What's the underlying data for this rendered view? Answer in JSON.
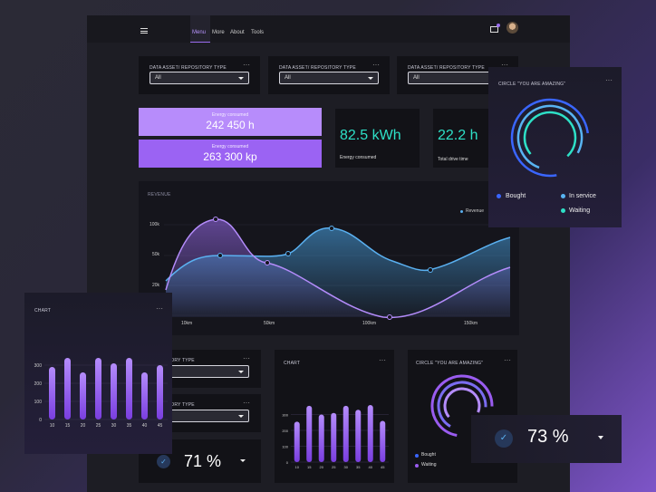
{
  "nav": {
    "items": [
      "Menu",
      "More",
      "About",
      "Tools"
    ],
    "active": 0
  },
  "filters": [
    {
      "label": "DATA ASSET/ REPOSITORY TYPE",
      "value": "All"
    },
    {
      "label": "DATA ASSET/ REPOSITORY TYPE",
      "value": "All"
    },
    {
      "label": "DATA ASSET/ REPOSITORY TYPE",
      "value": "All"
    }
  ],
  "kpis": {
    "energy1": {
      "label": "Energy consumed",
      "value": "242 450 h"
    },
    "energy2": {
      "label": "Energy consumed",
      "value": "263 300 kp"
    },
    "kwh": {
      "value": "82.5 kWh",
      "label": "Energy consumed"
    },
    "drive": {
      "value": "22.2 h",
      "label": "Total drive time"
    }
  },
  "revenue": {
    "title": "REVENUE",
    "legend": "Revenue",
    "y_ticks": [
      "100k",
      "50k",
      "20k"
    ],
    "x_ticks": [
      "10km",
      "50km",
      "100km",
      "150km"
    ]
  },
  "circle_card": {
    "title": "CIRCLE \"YOU ARE AMAZING\"",
    "legend": [
      {
        "label": "Bought",
        "color": "#3a66ff"
      },
      {
        "label": "In service",
        "color": "#58b4f2"
      },
      {
        "label": "Waiting",
        "color": "#2ee0c7"
      }
    ]
  },
  "chart_card_left": {
    "title": "CHART"
  },
  "chart_card_mid": {
    "title": "CHART"
  },
  "bottom_filters": [
    {
      "label": "ET/ REPOSITORY TYPE"
    },
    {
      "label": "ET/ REPOSITORY TYPE"
    }
  ],
  "percent_small": {
    "value": "71 %"
  },
  "percent_big": {
    "value": "73 %"
  },
  "circle_small": {
    "title": "CIRCLE \"YOU ARE AMAZING\"",
    "legend": [
      {
        "label": "Bought",
        "color": "#3a66ff"
      },
      {
        "label": "Waiting",
        "color": "#9a5cf0"
      }
    ]
  },
  "chart_data": [
    {
      "type": "line",
      "title": "REVENUE",
      "ylabel": "",
      "xlabel": "",
      "x_ticks": [
        "10km",
        "50km",
        "100km",
        "150km"
      ],
      "y_ticks": [
        "100k",
        "50k",
        "20k"
      ],
      "series": [
        {
          "name": "Revenue",
          "color": "#5ab0f0"
        }
      ]
    },
    {
      "type": "bar",
      "title": "CHART",
      "categories": [
        "10",
        "15",
        "20",
        "25",
        "30",
        "35",
        "40",
        "45"
      ],
      "values": [
        290,
        340,
        260,
        340,
        310,
        340,
        260,
        300
      ],
      "ylim": [
        0,
        400
      ],
      "y_ticks": [
        "0",
        "100",
        "200",
        "300"
      ]
    },
    {
      "type": "bar",
      "title": "CHART",
      "categories": [
        "10",
        "15",
        "20",
        "25",
        "30",
        "35",
        "40",
        "45"
      ],
      "values": [
        255,
        355,
        300,
        310,
        355,
        330,
        360,
        260
      ],
      "ylim": [
        0,
        400
      ],
      "y_ticks": [
        "0",
        "100",
        "200",
        "300"
      ]
    }
  ]
}
